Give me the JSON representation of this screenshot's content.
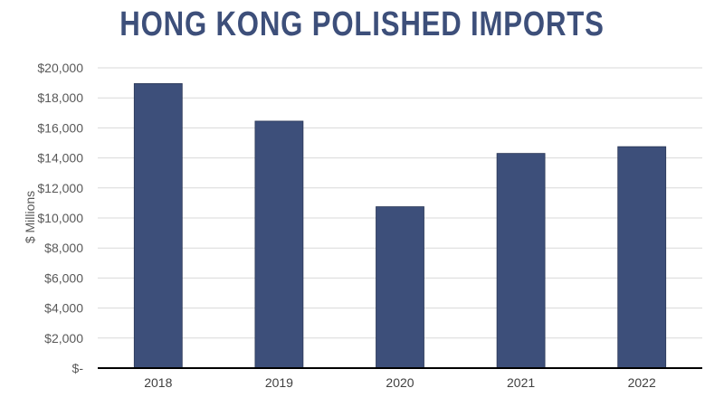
{
  "chart_data": {
    "type": "bar",
    "title": "HONG KONG POLISHED IMPORTS",
    "xlabel": "",
    "ylabel": "$ Millions",
    "categories": [
      "2018",
      "2019",
      "2020",
      "2021",
      "2022"
    ],
    "values": [
      18950,
      16450,
      10750,
      14300,
      14750
    ],
    "ylim": [
      0,
      20000
    ],
    "yticks": [
      0,
      2000,
      4000,
      6000,
      8000,
      10000,
      12000,
      14000,
      16000,
      18000,
      20000
    ],
    "ytick_labels": [
      "$-",
      "$2,000",
      "$4,000",
      "$6,000",
      "$8,000",
      "$10,000",
      "$12,000",
      "$14,000",
      "$16,000",
      "$18,000",
      "$20,000"
    ],
    "grid": true,
    "legend": "none",
    "colors": {
      "bar": "#3d4f7a",
      "title": "#3d4f7a",
      "grid": "#d9d9d9",
      "axis": "#000000",
      "tick_text": "#595959"
    }
  }
}
